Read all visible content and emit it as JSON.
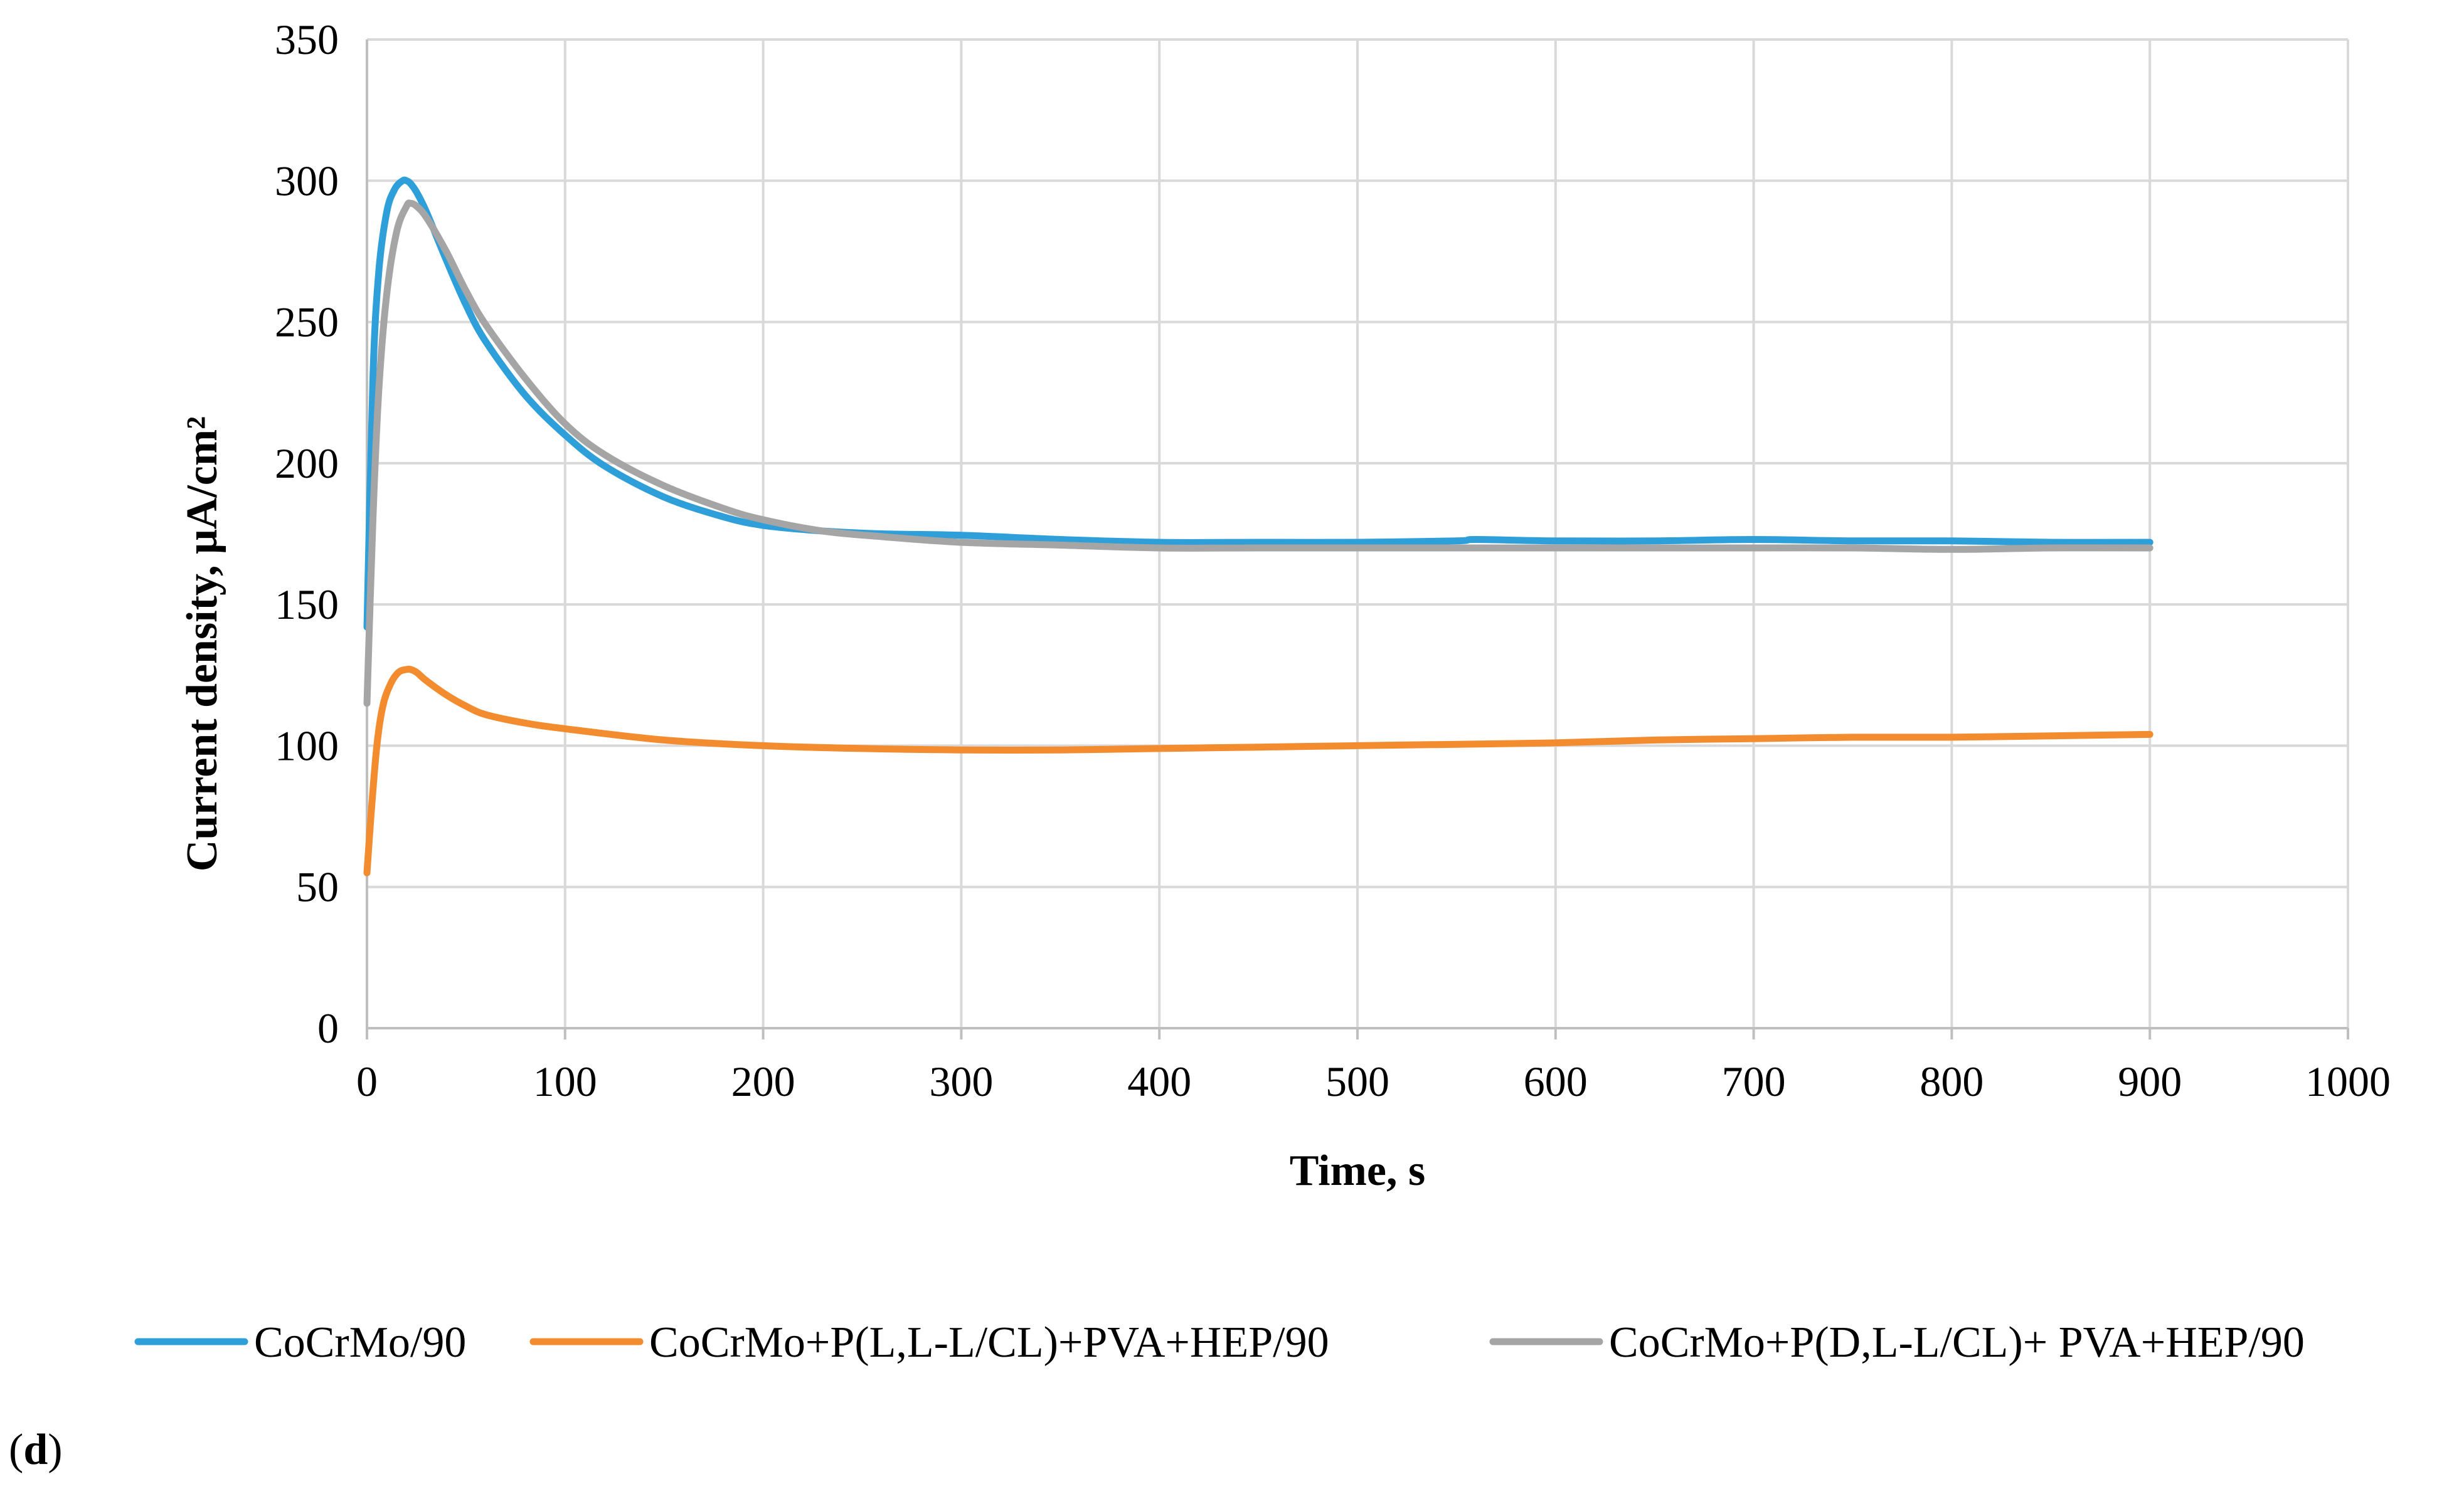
{
  "chart_data": {
    "type": "line",
    "title": "",
    "xlabel": "Time, s",
    "ylabel": "Current density, μA/cm²",
    "xlim": [
      0,
      1000
    ],
    "ylim": [
      0,
      350
    ],
    "x_ticks": [
      "0",
      "100",
      "200",
      "300",
      "400",
      "500",
      "600",
      "700",
      "800",
      "900",
      "1000"
    ],
    "y_ticks": [
      "0",
      "50",
      "100",
      "150",
      "200",
      "250",
      "300",
      "350"
    ],
    "grid": true,
    "legend_position": "bottom",
    "panel_label": {
      "open": "(",
      "letter": "d",
      "close": ")"
    },
    "series": [
      {
        "name": "CoCrMo/90",
        "color": "#2e9fd9",
        "x": [
          0,
          3,
          6,
          10,
          14,
          18,
          20,
          22,
          25,
          30,
          40,
          50,
          60,
          80,
          100,
          120,
          150,
          180,
          200,
          230,
          260,
          300,
          350,
          400,
          450,
          500,
          550,
          560,
          600,
          650,
          700,
          750,
          800,
          850,
          900
        ],
        "y": [
          142,
          230,
          268,
          289,
          297,
          300,
          300,
          299,
          296,
          289,
          272,
          256,
          243,
          224,
          210,
          199,
          188,
          181,
          178,
          176,
          175,
          174.5,
          173,
          172,
          172,
          172,
          172.5,
          173,
          172.5,
          172.5,
          173,
          172.5,
          172.5,
          172,
          172
        ]
      },
      {
        "name": "CoCrMo+P(L,L-L/CL)+PVA+HEP/90",
        "color": "#f38b2f",
        "x": [
          0,
          2,
          5,
          8,
          12,
          16,
          20,
          22,
          25,
          30,
          40,
          50,
          60,
          80,
          100,
          150,
          200,
          250,
          300,
          350,
          400,
          450,
          500,
          550,
          600,
          650,
          700,
          750,
          800,
          850,
          900
        ],
        "y": [
          55,
          75,
          100,
          114,
          122,
          126,
          127,
          127,
          126,
          123,
          118,
          114,
          111,
          108,
          106,
          102,
          100,
          99,
          98.5,
          98.5,
          99,
          99.5,
          100,
          100.5,
          101,
          102,
          102.5,
          103,
          103,
          103.5,
          104
        ]
      },
      {
        "name": "CoCrMo+P(D,L-L/CL)+ PVA+HEP/90",
        "color": "#a5a5a5",
        "x": [
          0,
          3,
          6,
          10,
          15,
          20,
          22,
          25,
          30,
          40,
          50,
          60,
          80,
          100,
          120,
          150,
          180,
          200,
          230,
          260,
          300,
          350,
          400,
          450,
          500,
          550,
          600,
          650,
          700,
          750,
          800,
          850,
          900
        ],
        "y": [
          115,
          180,
          226,
          260,
          282,
          291,
          292,
          291,
          287,
          275,
          261,
          249,
          230,
          214,
          203,
          192,
          184,
          180,
          176,
          174,
          172,
          171,
          170,
          170,
          170,
          170,
          170,
          170,
          170,
          170,
          169.5,
          170,
          170
        ]
      }
    ]
  }
}
